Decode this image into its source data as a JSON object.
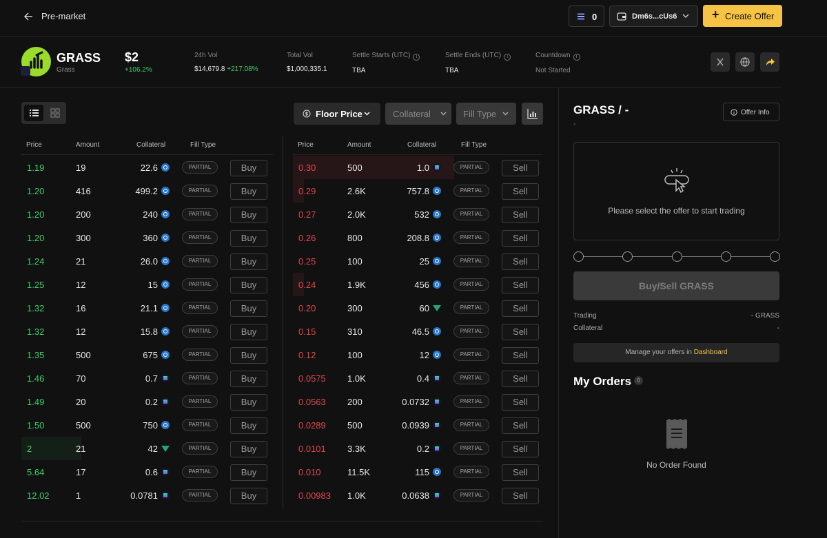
{
  "topbar": {
    "title": "Pre-market",
    "balance": "0",
    "wallet": "Dm6s...cUs6",
    "create_offer": "Create Offer"
  },
  "token": {
    "symbol": "GRASS",
    "name": "Grass",
    "price": "$2",
    "change": "+106.2%",
    "stats": [
      {
        "label": "24h Vol",
        "value": "$14,679.8",
        "extra": "+217.08%"
      },
      {
        "label": "Total Vol",
        "value": "$1,000,335.1"
      },
      {
        "label": "Settle Starts (UTC)",
        "value": "TBA"
      },
      {
        "label": "Settle Ends (UTC)",
        "value": "TBA"
      },
      {
        "label": "Countdown",
        "value": "Not Started"
      }
    ]
  },
  "filters": {
    "floor_price": "Floor Price",
    "collateral": "Collateral",
    "fill_type": "Fill Type"
  },
  "table_headers": [
    "Price",
    "Amount",
    "Collateral",
    "Fill Type"
  ],
  "fill_label": "PARTIAL",
  "buy_label": "Buy",
  "sell_label": "Sell",
  "buy_orders": [
    {
      "price": "1.19",
      "amount": "19",
      "collateral": "22.6",
      "coin": "usdc"
    },
    {
      "price": "1.20",
      "amount": "416",
      "collateral": "499.2",
      "coin": "usdc"
    },
    {
      "price": "1.20",
      "amount": "200",
      "collateral": "240",
      "coin": "usdc"
    },
    {
      "price": "1.20",
      "amount": "300",
      "collateral": "360",
      "coin": "usdc"
    },
    {
      "price": "1.24",
      "amount": "21",
      "collateral": "26.0",
      "coin": "usdc"
    },
    {
      "price": "1.25",
      "amount": "12",
      "collateral": "15",
      "coin": "usdc"
    },
    {
      "price": "1.32",
      "amount": "16",
      "collateral": "21.1",
      "coin": "usdc"
    },
    {
      "price": "1.32",
      "amount": "12",
      "collateral": "15.8",
      "coin": "usdc"
    },
    {
      "price": "1.35",
      "amount": "500",
      "collateral": "675",
      "coin": "usdc"
    },
    {
      "price": "1.46",
      "amount": "70",
      "collateral": "0.7",
      "coin": "sol"
    },
    {
      "price": "1.49",
      "amount": "20",
      "collateral": "0.2",
      "coin": "sol"
    },
    {
      "price": "1.50",
      "amount": "500",
      "collateral": "750",
      "coin": "usdc"
    },
    {
      "price": "2",
      "amount": "21",
      "collateral": "42",
      "coin": "usdt",
      "highlight": true
    },
    {
      "price": "5.64",
      "amount": "17",
      "collateral": "0.6",
      "coin": "sol"
    },
    {
      "price": "12.02",
      "amount": "1",
      "collateral": "0.0781",
      "coin": "sol"
    }
  ],
  "sell_orders": [
    {
      "price": "0.30",
      "amount": "500",
      "collateral": "1.0",
      "coin": "sol",
      "depth": 1.0
    },
    {
      "price": "0.29",
      "amount": "2.6K",
      "collateral": "757.8",
      "coin": "usdc",
      "depth": 0.07
    },
    {
      "price": "0.27",
      "amount": "2.0K",
      "collateral": "532",
      "coin": "usdc"
    },
    {
      "price": "0.26",
      "amount": "800",
      "collateral": "208.8",
      "coin": "usdc"
    },
    {
      "price": "0.25",
      "amount": "100",
      "collateral": "25",
      "coin": "usdc"
    },
    {
      "price": "0.24",
      "amount": "1.9K",
      "collateral": "456",
      "coin": "usdc",
      "depth": 0.07
    },
    {
      "price": "0.20",
      "amount": "300",
      "collateral": "60",
      "coin": "usdt"
    },
    {
      "price": "0.15",
      "amount": "310",
      "collateral": "46.5",
      "coin": "usdc"
    },
    {
      "price": "0.12",
      "amount": "100",
      "collateral": "12",
      "coin": "usdc"
    },
    {
      "price": "0.0575",
      "amount": "1.0K",
      "collateral": "0.4",
      "coin": "sol"
    },
    {
      "price": "0.0563",
      "amount": "200",
      "collateral": "0.0732",
      "coin": "sol"
    },
    {
      "price": "0.0289",
      "amount": "500",
      "collateral": "0.0939",
      "coin": "sol"
    },
    {
      "price": "0.0101",
      "amount": "3.3K",
      "collateral": "0.2",
      "coin": "sol"
    },
    {
      "price": "0.010",
      "amount": "11.5K",
      "collateral": "115",
      "coin": "usdc"
    },
    {
      "price": "0.00983",
      "amount": "1.0K",
      "collateral": "0.0638",
      "coin": "sol"
    }
  ],
  "right_panel": {
    "pair_title": "GRASS / -",
    "pair_sub": "-",
    "offer_info": "Offer Info",
    "select_text": "Please select the offer to start trading",
    "action_button": "Buy/Sell GRASS",
    "trading_label": "Trading",
    "trading_value": "- GRASS",
    "collateral_label": "Collateral",
    "collateral_value": "-",
    "manage_text": "Manage your offers in",
    "manage_link": "Dashboard",
    "my_orders": "My Orders",
    "orders_count": "0",
    "no_order": "No Order Found"
  },
  "colors": {
    "accent": "#f6c344",
    "green": "#3fcf6a",
    "red": "#e0474c",
    "background": "#111111"
  }
}
